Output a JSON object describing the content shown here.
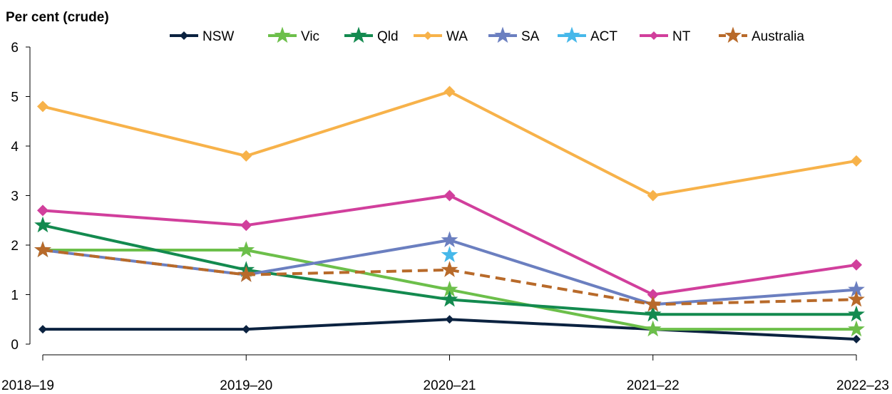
{
  "chart_data": {
    "type": "line",
    "ylabel": "Per cent (crude)",
    "xlabel": "",
    "categories": [
      "2018–19",
      "2019–20",
      "2020–21",
      "2021–22",
      "2022–23"
    ],
    "ylim": [
      0,
      6
    ],
    "yticks": [
      0,
      1,
      2,
      3,
      4,
      5,
      6
    ],
    "grid": false,
    "legend_position": "top",
    "series": [
      {
        "name": "NSW",
        "color": "#0b2240",
        "marker": "diamond",
        "dash": false,
        "values": [
          0.3,
          0.3,
          0.5,
          0.3,
          0.1
        ]
      },
      {
        "name": "Vic",
        "color": "#6cbf4a",
        "marker": "star",
        "dash": false,
        "values": [
          1.9,
          1.9,
          1.1,
          0.3,
          0.3
        ]
      },
      {
        "name": "Qld",
        "color": "#138a4f",
        "marker": "star",
        "dash": false,
        "values": [
          2.4,
          1.5,
          0.9,
          0.6,
          0.6
        ]
      },
      {
        "name": "WA",
        "color": "#f7b24a",
        "marker": "diamond",
        "dash": false,
        "values": [
          4.8,
          3.8,
          5.1,
          3.0,
          3.7
        ]
      },
      {
        "name": "SA",
        "color": "#6b7fc0",
        "marker": "star",
        "dash": false,
        "values": [
          1.9,
          1.4,
          2.1,
          0.8,
          1.1
        ]
      },
      {
        "name": "ACT",
        "color": "#46b8ea",
        "marker": "star",
        "dash": false,
        "values": [
          null,
          null,
          1.8,
          null,
          null
        ]
      },
      {
        "name": "NT",
        "color": "#d13f9c",
        "marker": "diamond",
        "dash": false,
        "values": [
          2.7,
          2.4,
          3.0,
          1.0,
          1.6
        ]
      },
      {
        "name": "Australia",
        "color": "#b86a2a",
        "marker": "star",
        "dash": true,
        "values": [
          1.9,
          1.4,
          1.5,
          0.8,
          0.9
        ]
      }
    ]
  }
}
